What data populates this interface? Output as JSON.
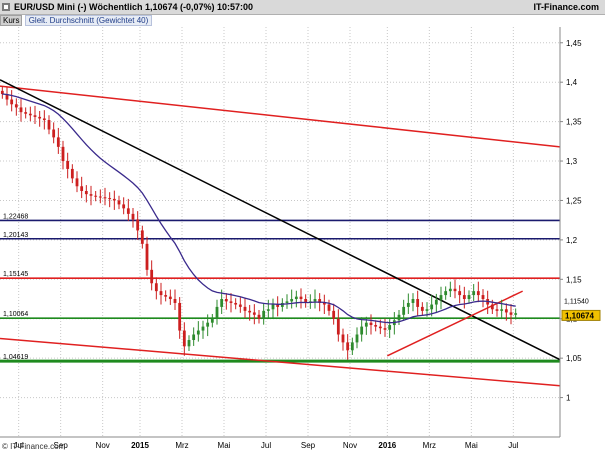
{
  "header": {
    "title": "EUR/USD Mini (-)   Wöchentlich   1,10674 (-0,07%)   10:57:00",
    "brand": "IT-Finance.com",
    "tabs": [
      "Kurs",
      "Gleit. Durchschnitt (Gewichtet 40)"
    ]
  },
  "footer": {
    "copyright": "© IT-Finance.com"
  },
  "colors": {
    "up": "#2e8b2e",
    "down": "#cc1f1f",
    "ma": "#3a2a8c",
    "support_green": "#1e8a1e",
    "trend_red": "#e02020",
    "trend_black": "#000000",
    "level_navy": "#1a1a6e",
    "price_tag": "#f0c000"
  },
  "chart_data": {
    "type": "candlestick",
    "ylim": [
      0.95,
      1.47
    ],
    "yticks": [
      1,
      1.05,
      1.1,
      1.15,
      1.2,
      1.25,
      1.3,
      1.35,
      1.4,
      1.45
    ],
    "ytick_labels": [
      "1",
      "1,05",
      "1,1",
      "1,15",
      "1,2",
      "1,25",
      "1,3",
      "1,35",
      "1,4",
      "1,45"
    ],
    "x_months": [
      "Jul",
      "Sep",
      "Nov",
      "2015",
      "Mrz",
      "Mai",
      "Jul",
      "Sep",
      "Nov",
      "2016",
      "Mrz",
      "Mai",
      "Jul"
    ],
    "x_month_weeks": [
      4,
      13,
      22,
      30,
      39,
      48,
      57,
      66,
      75,
      83,
      92,
      101,
      110
    ],
    "levels": [
      {
        "label": "1,22468",
        "value": 1.22468,
        "color": "#1a1a6e"
      },
      {
        "label": "1,20143",
        "value": 1.20143,
        "color": "#1a1a6e"
      },
      {
        "label": "1,15145",
        "value": 1.15145,
        "color": "#e02020"
      },
      {
        "label": "1,10064",
        "value": 1.10064,
        "color": "#1e8a1e"
      },
      {
        "label": "1,04619",
        "value": 1.04619,
        "color": "#1e8a1e"
      }
    ],
    "price_tags": [
      {
        "label": "1,11540",
        "value": 1.1154
      },
      {
        "label": "1,10674",
        "value": 1.10674
      }
    ],
    "trendlines": [
      {
        "color": "#e02020",
        "from": [
          0,
          1.395
        ],
        "to": [
          120,
          1.318
        ]
      },
      {
        "color": "#000000",
        "from": [
          0,
          1.403
        ],
        "to": [
          120,
          1.048
        ]
      },
      {
        "color": "#e02020",
        "from": [
          0,
          1.075
        ],
        "to": [
          120,
          1.015
        ]
      },
      {
        "color": "#e02020",
        "from": [
          83,
          1.053
        ],
        "to": [
          112,
          1.135
        ]
      }
    ],
    "closes": [
      1.385,
      1.378,
      1.372,
      1.368,
      1.362,
      1.36,
      1.358,
      1.356,
      1.354,
      1.352,
      1.34,
      1.33,
      1.318,
      1.3,
      1.29,
      1.278,
      1.268,
      1.262,
      1.258,
      1.256,
      1.255,
      1.254,
      1.253,
      1.252,
      1.25,
      1.245,
      1.24,
      1.233,
      1.226,
      1.212,
      1.195,
      1.162,
      1.145,
      1.135,
      1.13,
      1.128,
      1.125,
      1.12,
      1.085,
      1.065,
      1.073,
      1.08,
      1.085,
      1.09,
      1.095,
      1.1,
      1.115,
      1.125,
      1.122,
      1.12,
      1.118,
      1.115,
      1.11,
      1.108,
      1.105,
      1.1,
      1.11,
      1.112,
      1.118,
      1.115,
      1.12,
      1.122,
      1.125,
      1.128,
      1.125,
      1.12,
      1.122,
      1.125,
      1.12,
      1.118,
      1.11,
      1.1,
      1.08,
      1.07,
      1.06,
      1.07,
      1.08,
      1.09,
      1.095,
      1.092,
      1.09,
      1.088,
      1.086,
      1.092,
      1.098,
      1.105,
      1.115,
      1.12,
      1.125,
      1.115,
      1.11,
      1.112,
      1.118,
      1.124,
      1.13,
      1.135,
      1.138,
      1.135,
      1.13,
      1.125,
      1.13,
      1.135,
      1.13,
      1.125,
      1.118,
      1.112,
      1.11,
      1.112,
      1.108,
      1.105,
      1.107
    ]
  }
}
